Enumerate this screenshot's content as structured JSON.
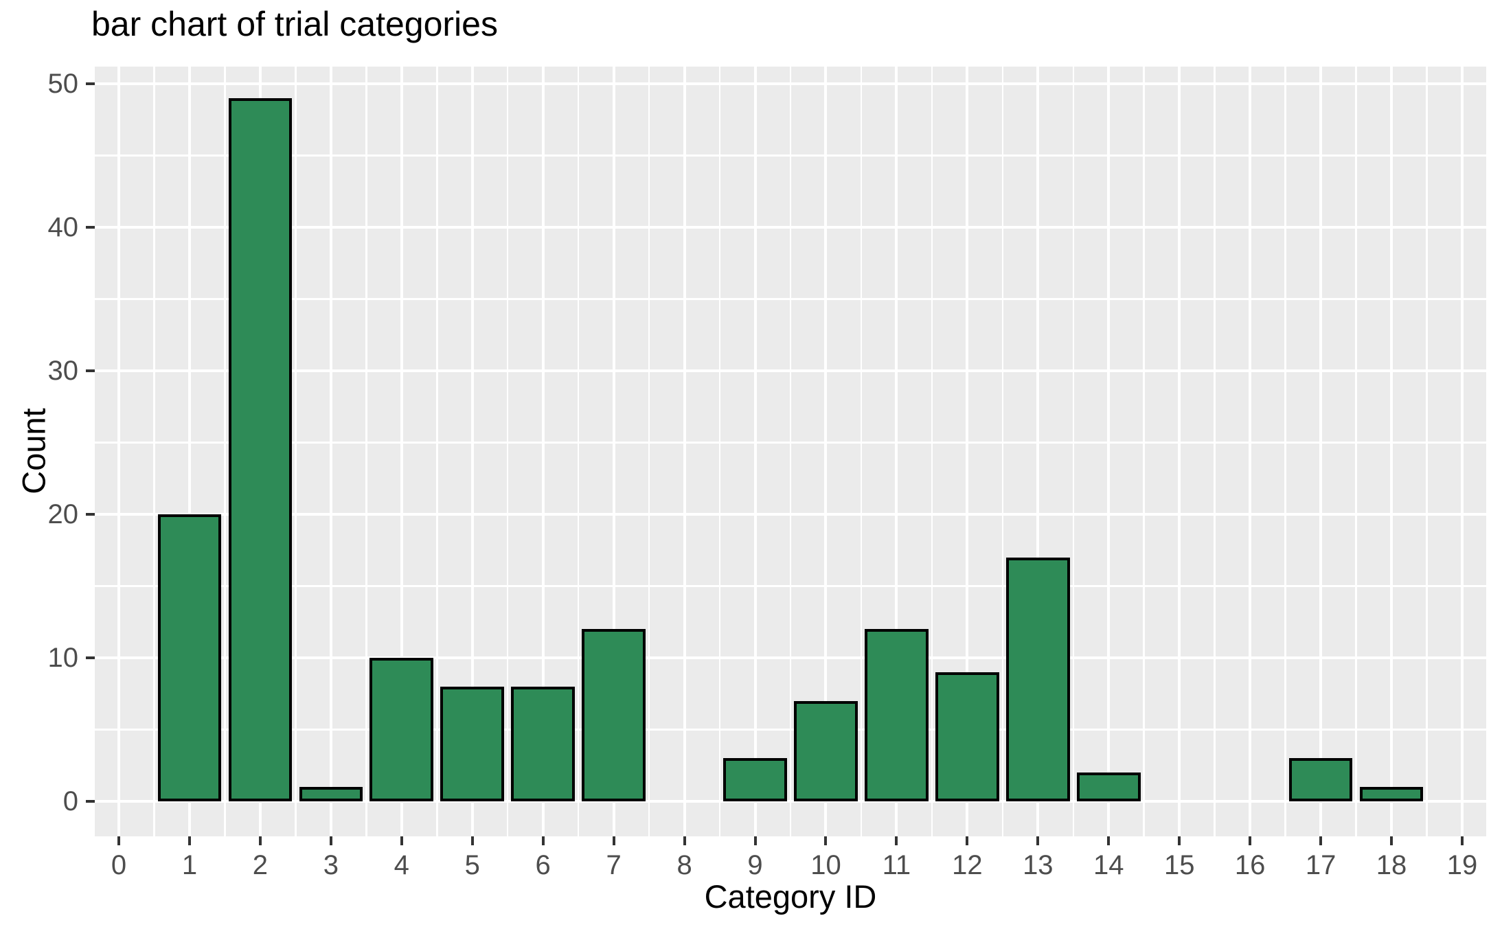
{
  "chart_data": {
    "type": "bar",
    "title": "bar chart of trial categories",
    "xlabel": "Category ID",
    "ylabel": "Count",
    "categories": [
      0,
      1,
      2,
      3,
      4,
      5,
      6,
      7,
      8,
      9,
      10,
      11,
      12,
      13,
      14,
      15,
      16,
      17,
      18,
      19
    ],
    "values": [
      0,
      20,
      49,
      1,
      10,
      8,
      8,
      12,
      0,
      3,
      7,
      12,
      9,
      17,
      2,
      0,
      0,
      3,
      1,
      0
    ],
    "x_tick_labels": [
      "0",
      "1",
      "2",
      "3",
      "4",
      "5",
      "6",
      "7",
      "8",
      "9",
      "10",
      "11",
      "12",
      "13",
      "14",
      "15",
      "16",
      "17",
      "18",
      "19"
    ],
    "y_tick_labels": [
      "0",
      "10",
      "20",
      "30",
      "40",
      "50"
    ],
    "y_major_ticks": [
      0,
      10,
      20,
      30,
      40,
      50
    ],
    "y_minor_ticks": [
      5,
      15,
      25,
      35,
      45
    ],
    "ylim": [
      0,
      50
    ],
    "bar_width_fraction": 0.9,
    "grid": "major-and-minor",
    "legend_position": "none",
    "colors": {
      "bar_fill": "#2E8B57",
      "bar_stroke": "#000000",
      "panel_background": "#EBEBEB",
      "gridline": "#FFFFFF",
      "tick_label_text": "#4D4D4D",
      "axis_title_text": "#000000",
      "title_text": "#000000",
      "tick_mark": "#333333",
      "figure_background": "#FFFFFF"
    }
  }
}
